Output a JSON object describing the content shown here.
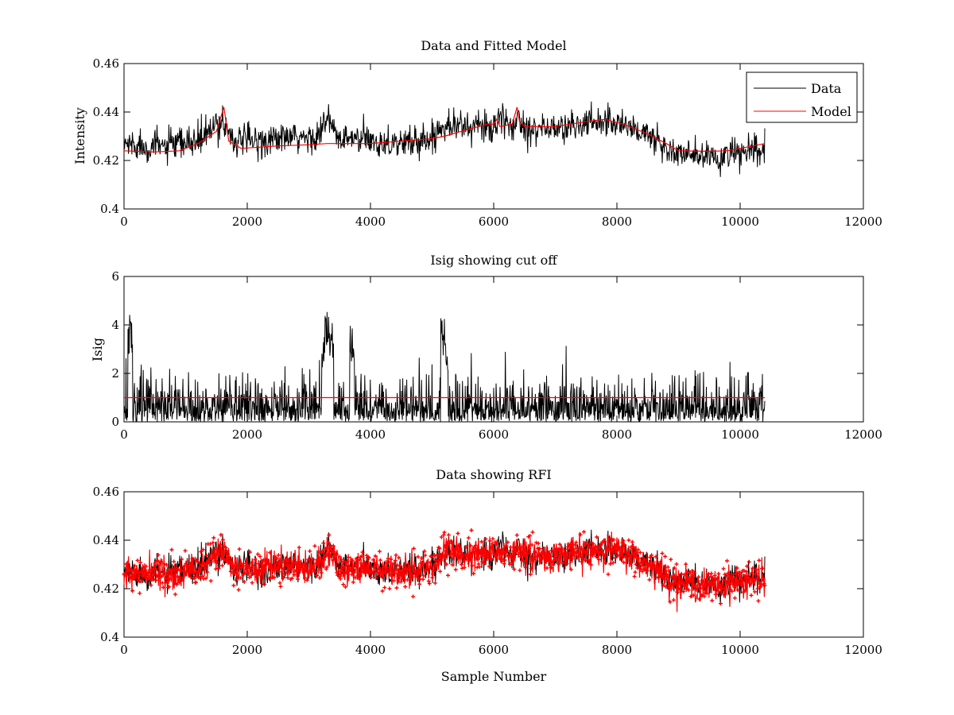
{
  "chart_data": [
    {
      "type": "line",
      "title": "Data and Fitted Model",
      "xlabel": "",
      "ylabel": "Intensity",
      "xlim": [
        0,
        12000
      ],
      "ylim": [
        0.4,
        0.46
      ],
      "xticks": [
        "0",
        "2000",
        "4000",
        "6000",
        "8000",
        "10000",
        "12000"
      ],
      "yticks": [
        "0.4",
        "0.42",
        "0.44",
        "0.46"
      ],
      "legend": {
        "position": "top-right",
        "entries": [
          "Data",
          "Model"
        ]
      },
      "x_extent": [
        0,
        10400
      ],
      "series": [
        {
          "name": "Data",
          "color": "#000000",
          "style": "noisy-line",
          "noise_amplitude": 0.006,
          "trend_x": [
            0,
            400,
            800,
            1200,
            1500,
            1600,
            1700,
            1800,
            2000,
            2600,
            3000,
            3200,
            3300,
            3400,
            3500,
            3700,
            4000,
            4500,
            5000,
            5200,
            5500,
            6000,
            6100,
            6300,
            6400,
            6500,
            7000,
            7500,
            7800,
            8200,
            8600,
            8900,
            9200,
            9600,
            10000,
            10400
          ],
          "trend_y": [
            0.427,
            0.426,
            0.426,
            0.428,
            0.434,
            0.437,
            0.432,
            0.428,
            0.428,
            0.429,
            0.429,
            0.432,
            0.437,
            0.433,
            0.428,
            0.429,
            0.428,
            0.427,
            0.429,
            0.436,
            0.434,
            0.434,
            0.436,
            0.434,
            0.438,
            0.434,
            0.433,
            0.435,
            0.437,
            0.434,
            0.429,
            0.423,
            0.422,
            0.421,
            0.423,
            0.424
          ]
        },
        {
          "name": "Model",
          "color": "#ff0000",
          "style": "line",
          "x": [
            0,
            500,
            900,
            1200,
            1500,
            1620,
            1700,
            1900,
            2500,
            3000,
            3300,
            3500,
            4000,
            5000,
            5200,
            5600,
            5900,
            6000,
            6050,
            6100,
            6300,
            6380,
            6420,
            6500,
            7000,
            7500,
            7800,
            8100,
            8500,
            8800,
            9000,
            9500,
            9800,
            10000,
            10400
          ],
          "y": [
            0.424,
            0.4235,
            0.424,
            0.427,
            0.432,
            0.442,
            0.428,
            0.425,
            0.426,
            0.4265,
            0.427,
            0.427,
            0.427,
            0.429,
            0.43,
            0.433,
            0.435,
            0.435,
            0.437,
            0.434,
            0.435,
            0.442,
            0.436,
            0.434,
            0.434,
            0.436,
            0.437,
            0.435,
            0.431,
            0.427,
            0.424,
            0.4238,
            0.424,
            0.425,
            0.427
          ]
        }
      ]
    },
    {
      "type": "line",
      "title": "Isig showing cut off",
      "xlabel": "",
      "ylabel": "Isig",
      "xlim": [
        0,
        12000
      ],
      "ylim": [
        0,
        6
      ],
      "xticks": [
        "0",
        "2000",
        "4000",
        "6000",
        "8000",
        "10000",
        "12000"
      ],
      "yticks": [
        "0",
        "2",
        "4",
        "6"
      ],
      "x_extent": [
        0,
        10400
      ],
      "series": [
        {
          "color": "#000000",
          "style": "noisy-spikes",
          "cutoff_y": 1,
          "spikes_x": [
            100,
            3250,
            3300,
            3350,
            3700,
            5180,
            5220
          ],
          "spikes_y": [
            4.5,
            3.5,
            4.6,
            4.2,
            4.0,
            4.3,
            3.4
          ]
        },
        {
          "color": "#ff0000",
          "style": "line",
          "x": [
            0,
            10400
          ],
          "y": [
            1,
            1
          ]
        }
      ]
    },
    {
      "type": "scatter",
      "title": "Data showing RFI",
      "xlabel": "Sample Number",
      "ylabel": "",
      "xlim": [
        0,
        12000
      ],
      "ylim": [
        0.4,
        0.46
      ],
      "xticks": [
        "0",
        "2000",
        "4000",
        "6000",
        "8000",
        "10000",
        "12000"
      ],
      "yticks": [
        "0.4",
        "0.42",
        "0.44",
        "0.46"
      ],
      "x_extent": [
        0,
        10400
      ],
      "series": [
        {
          "color": "#000000",
          "style": "noisy-line",
          "noise_amplitude": 0.006,
          "reuse_trend_of": 0
        },
        {
          "color": "#ff0000",
          "style": "markers",
          "marker": "+",
          "reuse_trend_of": 0
        }
      ]
    }
  ]
}
